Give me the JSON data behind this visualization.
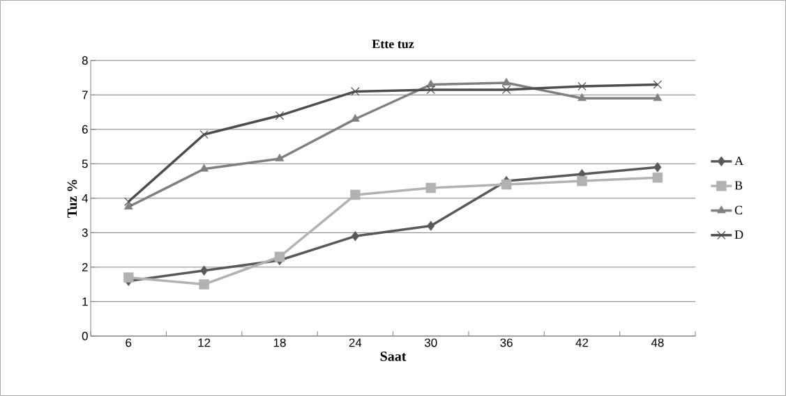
{
  "chart_data": {
    "type": "line",
    "title": "Ette tuz",
    "xlabel": "Saat",
    "ylabel": "Tuz %",
    "categories": [
      "6",
      "12",
      "18",
      "24",
      "30",
      "36",
      "42",
      "48"
    ],
    "series": [
      {
        "name": "A",
        "color": "#595959",
        "marker": "diamond",
        "values": [
          1.6,
          1.9,
          2.2,
          2.9,
          3.2,
          4.5,
          4.7,
          4.9
        ]
      },
      {
        "name": "B",
        "color": "#b2b2b2",
        "marker": "square",
        "values": [
          1.7,
          1.5,
          2.3,
          4.1,
          4.3,
          4.4,
          4.5,
          4.6
        ]
      },
      {
        "name": "C",
        "color": "#808080",
        "marker": "triangle",
        "values": [
          3.75,
          4.85,
          5.15,
          6.3,
          7.3,
          7.35,
          6.9,
          6.9
        ]
      },
      {
        "name": "D",
        "color": "#4d4d4d",
        "marker": "cross",
        "values": [
          3.9,
          5.85,
          6.4,
          7.1,
          7.15,
          7.15,
          7.25,
          7.3
        ]
      }
    ],
    "ylim": [
      0,
      8
    ],
    "yticks": [
      0,
      1,
      2,
      3,
      4,
      5,
      6,
      7,
      8
    ],
    "grid": "y",
    "legend": "right",
    "line_style": "solid"
  }
}
